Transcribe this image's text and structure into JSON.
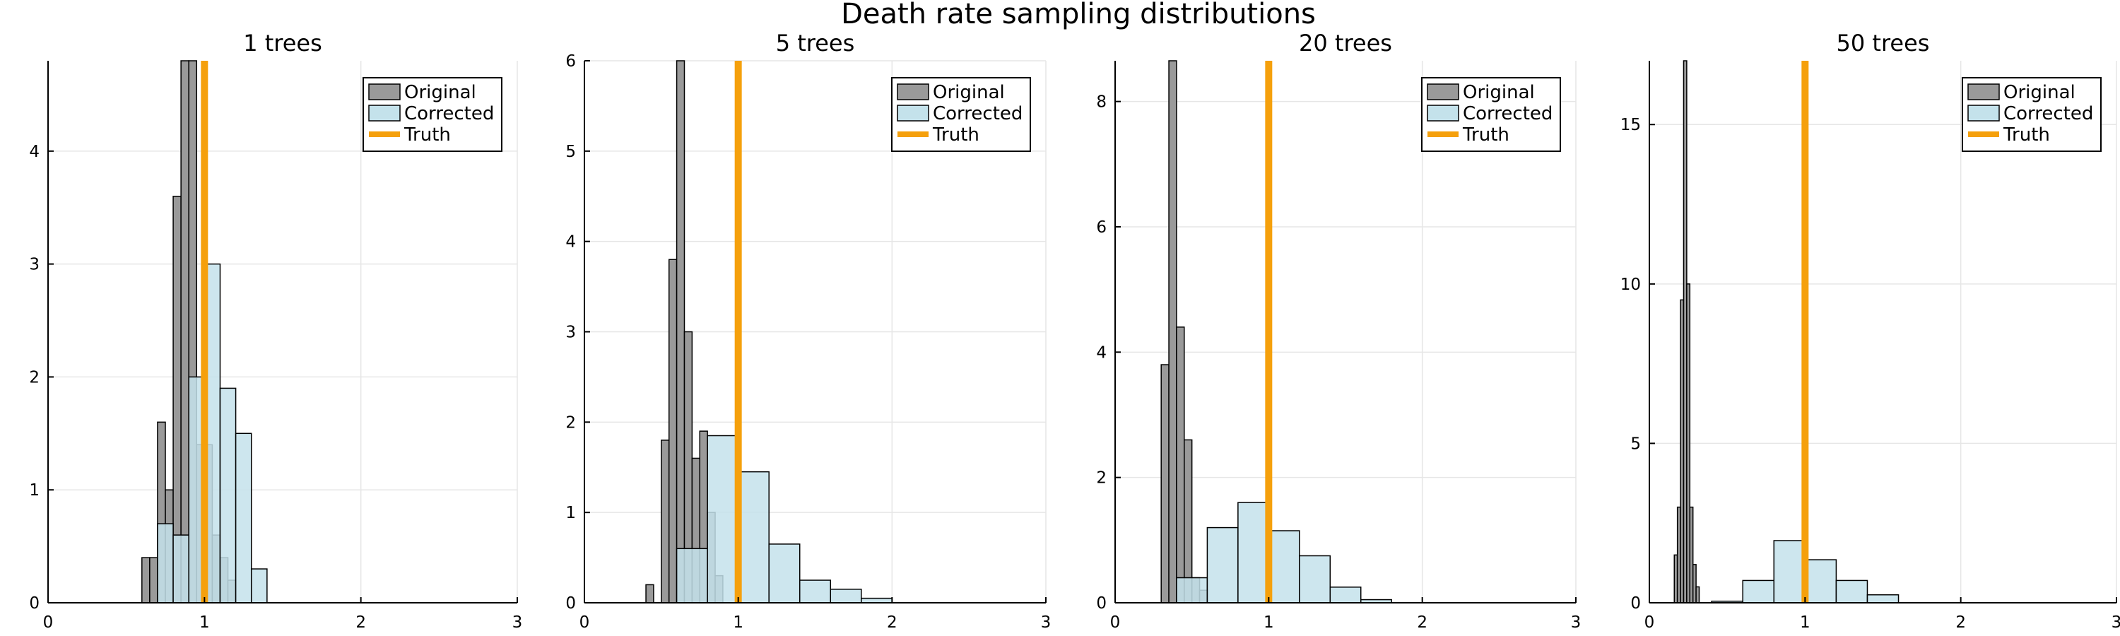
{
  "title": "Death rate sampling distributions",
  "colors": {
    "original": "#9a9a9a",
    "corrected": "#c4e2eb",
    "truth": "#f5a00c",
    "grid": "#e6e6e6",
    "edge": "#000000"
  },
  "legend": {
    "placement": "top-right",
    "entries": [
      "Original",
      "Corrected",
      "Truth"
    ]
  },
  "chart_data": [
    {
      "type": "bar",
      "title": "1 trees",
      "xlim": [
        0,
        3
      ],
      "ylim": [
        0,
        4.8
      ],
      "xticks": [
        0,
        1,
        2,
        3
      ],
      "yticks": [
        0,
        1,
        2,
        3,
        4
      ],
      "grid": true,
      "truth": 1,
      "series": [
        {
          "name": "Original",
          "bin_width": 0.05,
          "bins": [
            [
              0.6,
              0.4
            ],
            [
              0.65,
              0.4
            ],
            [
              0.7,
              1.6
            ],
            [
              0.75,
              1.0
            ],
            [
              0.8,
              3.6
            ],
            [
              0.85,
              4.8
            ],
            [
              0.9,
              4.8
            ],
            [
              0.95,
              1.4
            ],
            [
              1.0,
              1.4
            ],
            [
              1.05,
              0.6
            ],
            [
              1.1,
              0.4
            ],
            [
              1.15,
              0.2
            ]
          ]
        },
        {
          "name": "Corrected",
          "bin_width": 0.1,
          "bins": [
            [
              0.7,
              0.7
            ],
            [
              0.8,
              0.6
            ],
            [
              0.9,
              2.0
            ],
            [
              1.0,
              3.0
            ],
            [
              1.1,
              1.9
            ],
            [
              1.2,
              1.5
            ],
            [
              1.3,
              0.3
            ]
          ]
        }
      ]
    },
    {
      "type": "bar",
      "title": "5 trees",
      "xlim": [
        0,
        3
      ],
      "ylim": [
        0,
        6
      ],
      "xticks": [
        0,
        1,
        2,
        3
      ],
      "yticks": [
        0,
        1,
        2,
        3,
        4,
        5,
        6
      ],
      "grid": true,
      "truth": 1,
      "series": [
        {
          "name": "Original",
          "bin_width": 0.05,
          "bins": [
            [
              0.4,
              0.2
            ],
            [
              0.5,
              1.8
            ],
            [
              0.55,
              3.8
            ],
            [
              0.6,
              6.0
            ],
            [
              0.65,
              3.0
            ],
            [
              0.7,
              1.6
            ],
            [
              0.75,
              1.9
            ],
            [
              0.8,
              1.0
            ],
            [
              0.85,
              0.3
            ]
          ]
        },
        {
          "name": "Corrected",
          "bin_width": 0.2,
          "bins": [
            [
              0.6,
              0.6
            ],
            [
              0.8,
              1.85
            ],
            [
              1.0,
              1.45
            ],
            [
              1.2,
              0.65
            ],
            [
              1.4,
              0.25
            ],
            [
              1.6,
              0.15
            ],
            [
              1.8,
              0.05
            ]
          ]
        }
      ]
    },
    {
      "type": "bar",
      "title": "20 trees",
      "xlim": [
        0,
        3
      ],
      "ylim": [
        0,
        8.65
      ],
      "xticks": [
        0,
        1,
        2,
        3
      ],
      "yticks": [
        0,
        2,
        4,
        6,
        8
      ],
      "grid": true,
      "truth": 1,
      "series": [
        {
          "name": "Original",
          "bin_width": 0.05,
          "bins": [
            [
              0.3,
              3.8
            ],
            [
              0.35,
              8.65
            ],
            [
              0.4,
              4.4
            ],
            [
              0.45,
              2.6
            ],
            [
              0.5,
              0.4
            ],
            [
              0.55,
              0.2
            ]
          ]
        },
        {
          "name": "Corrected",
          "bin_width": 0.2,
          "bins": [
            [
              0.4,
              0.4
            ],
            [
              0.6,
              1.2
            ],
            [
              0.8,
              1.6
            ],
            [
              1.0,
              1.15
            ],
            [
              1.2,
              0.75
            ],
            [
              1.4,
              0.25
            ],
            [
              1.6,
              0.05
            ]
          ]
        }
      ]
    },
    {
      "type": "bar",
      "title": "50 trees",
      "xlim": [
        0,
        3
      ],
      "ylim": [
        0,
        17
      ],
      "xticks": [
        0,
        1,
        2,
        3
      ],
      "yticks": [
        0,
        5,
        10,
        15
      ],
      "grid": true,
      "truth": 1,
      "series": [
        {
          "name": "Original",
          "bin_width": 0.02,
          "bins": [
            [
              0.16,
              1.5
            ],
            [
              0.18,
              3.0
            ],
            [
              0.2,
              9.5
            ],
            [
              0.22,
              17.0
            ],
            [
              0.24,
              10.0
            ],
            [
              0.26,
              3.0
            ],
            [
              0.28,
              1.2
            ],
            [
              0.3,
              0.5
            ]
          ]
        },
        {
          "name": "Corrected",
          "bin_width": 0.2,
          "bins": [
            [
              0.4,
              0.05
            ],
            [
              0.6,
              0.7
            ],
            [
              0.8,
              1.95
            ],
            [
              1.0,
              1.35
            ],
            [
              1.2,
              0.7
            ],
            [
              1.4,
              0.25
            ]
          ]
        }
      ]
    }
  ]
}
